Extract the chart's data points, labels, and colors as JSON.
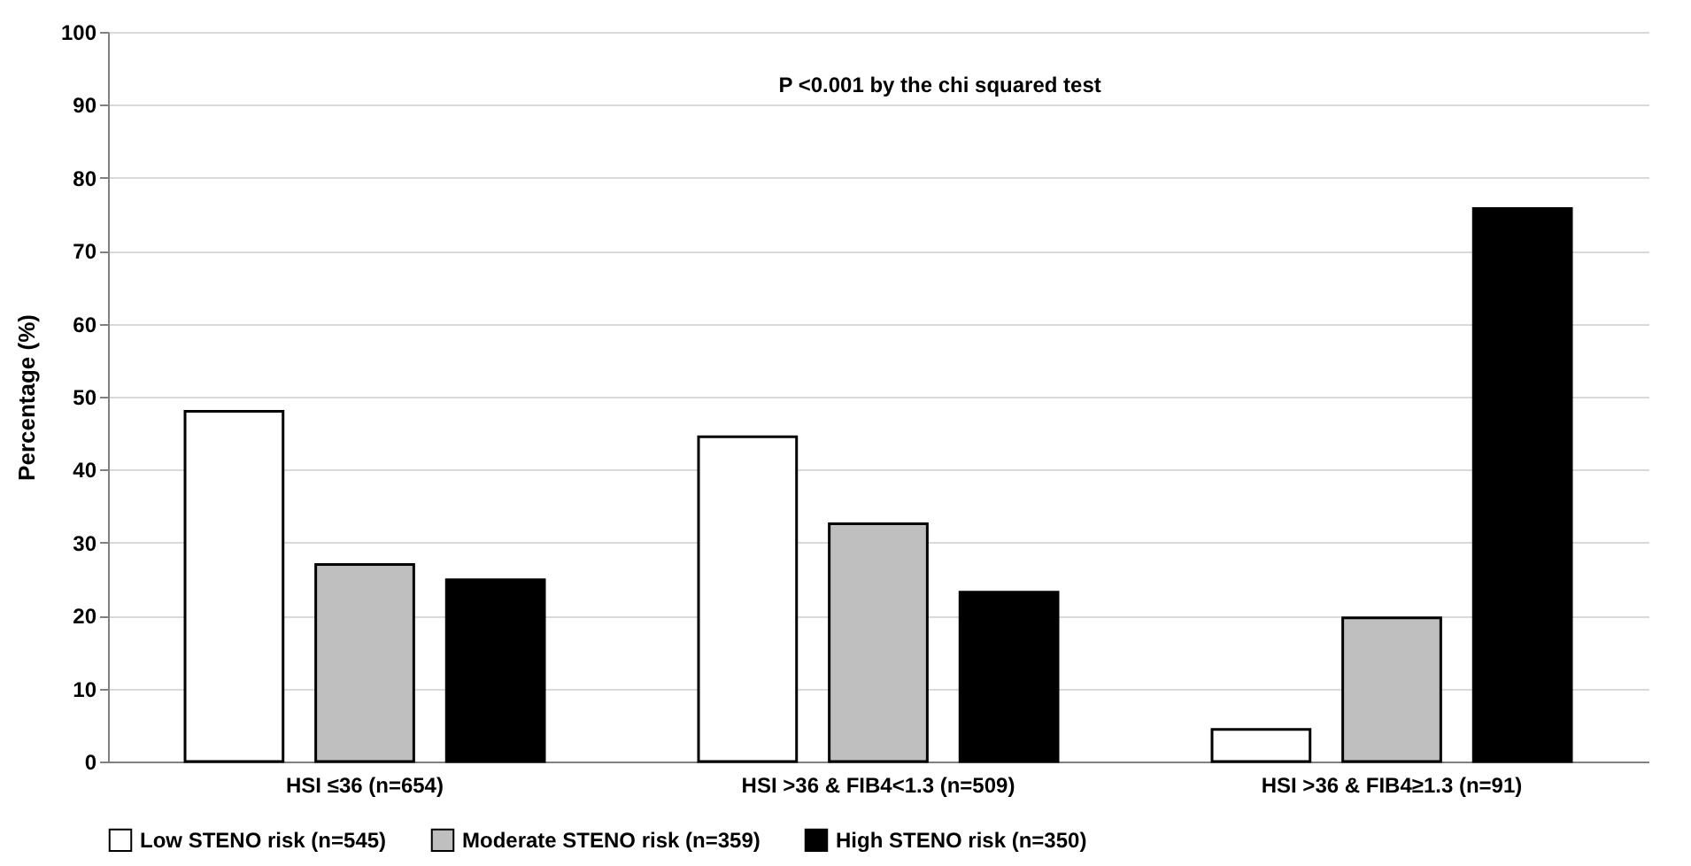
{
  "chart_data": {
    "type": "bar",
    "ylabel": "Percentage (%)",
    "categories": [
      "HSI ≤36 (n=654)",
      "HSI >36 & FIB4<1.3 (n=509)",
      "HSI >36 & FIB4≥1.3 (n=91)"
    ],
    "series": [
      {
        "name": "Low STENO risk (n=545)",
        "color": "#ffffff",
        "values": [
          48,
          44.5,
          4.4
        ]
      },
      {
        "name": "Moderate STENO risk (n=359)",
        "color": "#bfbfbf",
        "values": [
          27,
          32.6,
          19.7
        ]
      },
      {
        "name": "High STENO risk (n=350)",
        "color": "#000000",
        "values": [
          24.9,
          23.2,
          75.8
        ]
      }
    ],
    "ylim": [
      0,
      100
    ],
    "yticks": [
      0,
      10,
      20,
      30,
      40,
      50,
      60,
      70,
      80,
      90,
      100
    ],
    "grid": "y",
    "legend": "bottom",
    "annotations": [
      "P <0.001 by the chi squared test"
    ]
  }
}
